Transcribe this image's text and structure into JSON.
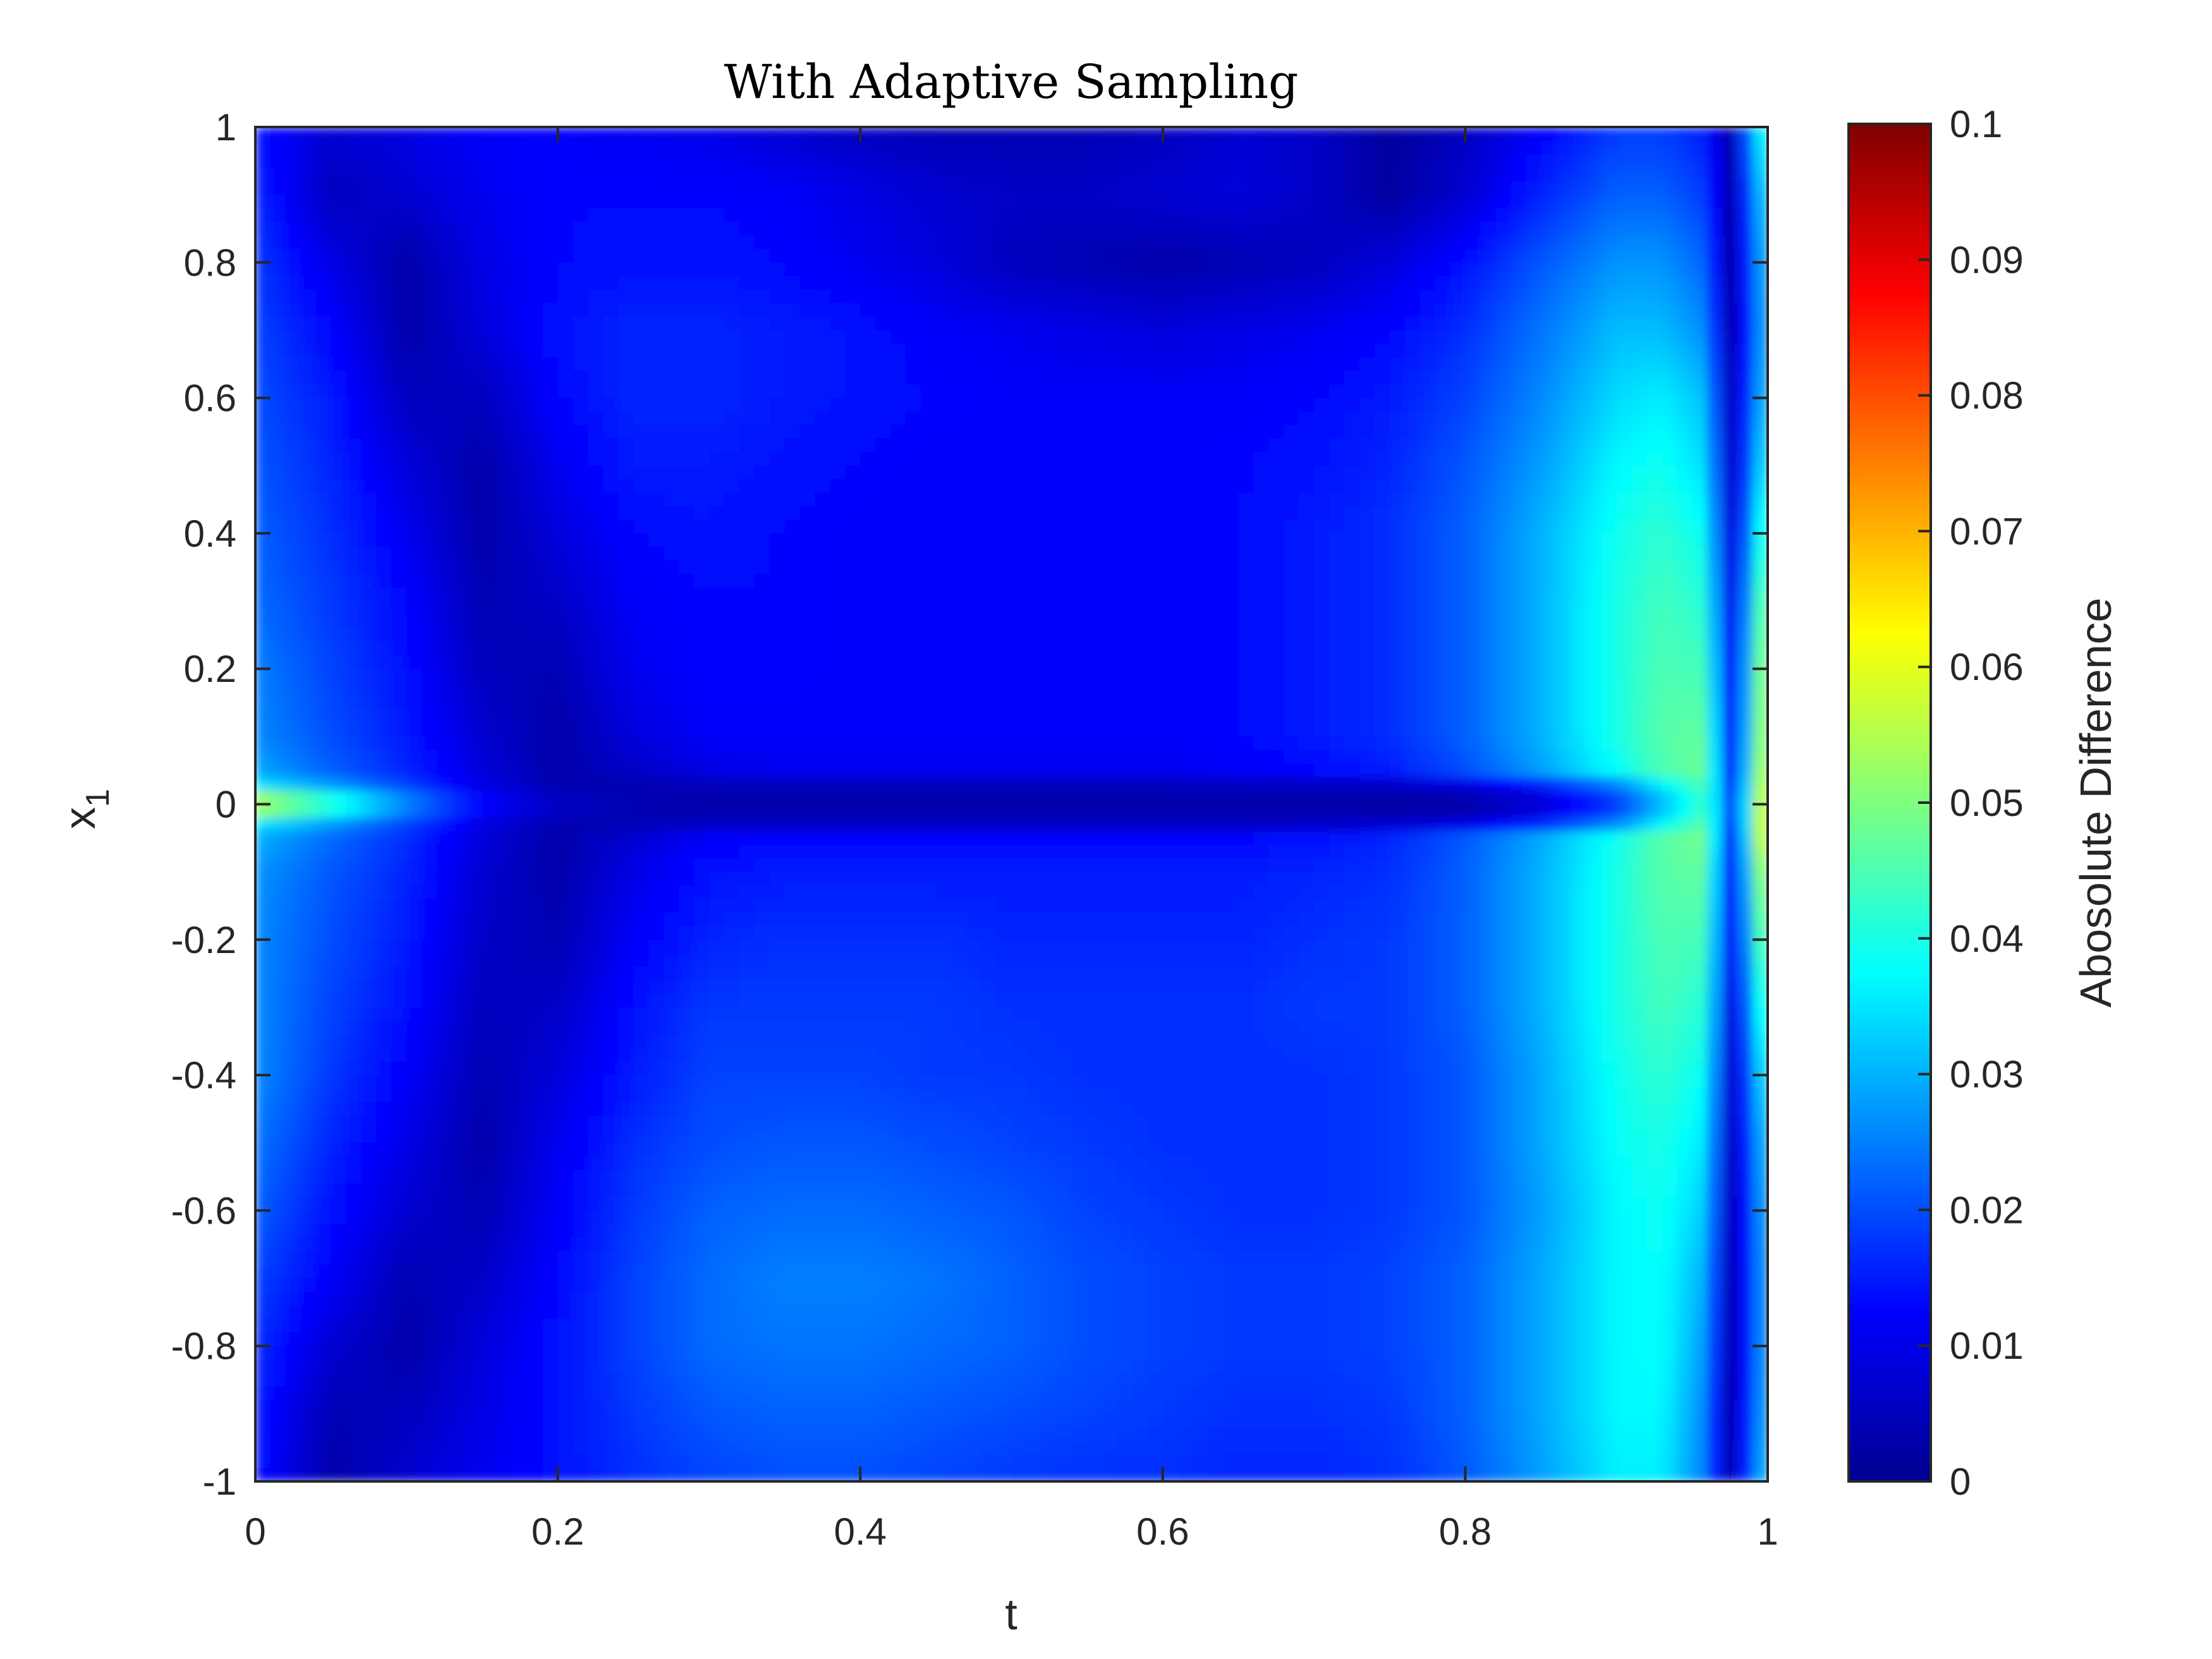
{
  "chart_data": {
    "type": "heatmap",
    "title": "With Adaptive Sampling",
    "xlabel": "t",
    "ylabel_base": "x",
    "ylabel_sub": "1",
    "colorbar_label": "Abosolute Difference",
    "xlim": [
      0,
      1
    ],
    "ylim": [
      -1,
      1
    ],
    "clim": [
      0,
      0.1
    ],
    "colormap": "jet",
    "grid": false,
    "x_ticks": [
      {
        "value": 0,
        "label": "0"
      },
      {
        "value": 0.2,
        "label": "0.2"
      },
      {
        "value": 0.4,
        "label": "0.4"
      },
      {
        "value": 0.6,
        "label": "0.6"
      },
      {
        "value": 0.8,
        "label": "0.8"
      },
      {
        "value": 1,
        "label": "1"
      }
    ],
    "y_ticks": [
      {
        "value": 1,
        "label": "1"
      },
      {
        "value": 0.8,
        "label": "0.8"
      },
      {
        "value": 0.6,
        "label": "0.6"
      },
      {
        "value": 0.4,
        "label": "0.4"
      },
      {
        "value": 0.2,
        "label": "0.2"
      },
      {
        "value": 0,
        "label": "0"
      },
      {
        "value": -0.2,
        "label": "-0.2"
      },
      {
        "value": -0.4,
        "label": "-0.4"
      },
      {
        "value": -0.6,
        "label": "-0.6"
      },
      {
        "value": -0.8,
        "label": "-0.8"
      },
      {
        "value": -1,
        "label": "-1"
      }
    ],
    "colorbar_ticks": [
      {
        "value": 0.1,
        "label": "0.1"
      },
      {
        "value": 0.09,
        "label": "0.09"
      },
      {
        "value": 0.08,
        "label": "0.08"
      },
      {
        "value": 0.07,
        "label": "0.07"
      },
      {
        "value": 0.06,
        "label": "0.06"
      },
      {
        "value": 0.05,
        "label": "0.05"
      },
      {
        "value": 0.04,
        "label": "0.04"
      },
      {
        "value": 0.03,
        "label": "0.03"
      },
      {
        "value": 0.02,
        "label": "0.02"
      },
      {
        "value": 0.01,
        "label": "0.01"
      },
      {
        "value": 0,
        "label": "0"
      }
    ],
    "t_grid": [
      0,
      0.05,
      0.1,
      0.15,
      0.2,
      0.25,
      0.3,
      0.35,
      0.4,
      0.45,
      0.5,
      0.55,
      0.6,
      0.65,
      0.7,
      0.75,
      0.8,
      0.85,
      0.9,
      0.93,
      0.96,
      0.97,
      0.98,
      0.99,
      1.0
    ],
    "x1_grid": [
      1.0,
      0.9,
      0.8,
      0.7,
      0.6,
      0.5,
      0.4,
      0.3,
      0.2,
      0.1,
      0.05,
      0.02,
      0.0,
      -0.02,
      -0.05,
      -0.1,
      -0.2,
      -0.3,
      -0.4,
      -0.5,
      -0.6,
      -0.7,
      -0.8,
      -0.9,
      -1.0
    ],
    "values": [
      [
        0.014,
        0.008,
        0.01,
        0.012,
        0.012,
        0.011,
        0.01,
        0.008,
        0.006,
        0.005,
        0.005,
        0.005,
        0.006,
        0.008,
        0.007,
        0.003,
        0.006,
        0.012,
        0.018,
        0.018,
        0.015,
        0.006,
        0.004,
        0.036,
        0.036
      ],
      [
        0.016,
        0.006,
        0.008,
        0.011,
        0.013,
        0.013,
        0.013,
        0.012,
        0.01,
        0.008,
        0.007,
        0.007,
        0.008,
        0.009,
        0.007,
        0.003,
        0.008,
        0.016,
        0.022,
        0.022,
        0.018,
        0.007,
        0.003,
        0.03,
        0.03
      ],
      [
        0.018,
        0.01,
        0.004,
        0.01,
        0.013,
        0.014,
        0.014,
        0.013,
        0.011,
        0.009,
        0.006,
        0.005,
        0.004,
        0.005,
        0.006,
        0.009,
        0.014,
        0.021,
        0.027,
        0.027,
        0.022,
        0.008,
        0.002,
        0.027,
        0.027
      ],
      [
        0.019,
        0.013,
        0.004,
        0.009,
        0.014,
        0.016,
        0.016,
        0.015,
        0.014,
        0.012,
        0.011,
        0.01,
        0.009,
        0.01,
        0.011,
        0.013,
        0.017,
        0.024,
        0.031,
        0.031,
        0.026,
        0.009,
        0.002,
        0.026,
        0.026
      ],
      [
        0.02,
        0.015,
        0.006,
        0.006,
        0.013,
        0.016,
        0.016,
        0.015,
        0.014,
        0.013,
        0.012,
        0.012,
        0.012,
        0.012,
        0.013,
        0.015,
        0.019,
        0.026,
        0.034,
        0.036,
        0.031,
        0.011,
        0.003,
        0.028,
        0.028
      ],
      [
        0.021,
        0.016,
        0.009,
        0.004,
        0.011,
        0.015,
        0.015,
        0.014,
        0.013,
        0.012,
        0.012,
        0.012,
        0.012,
        0.013,
        0.014,
        0.016,
        0.021,
        0.028,
        0.037,
        0.039,
        0.034,
        0.013,
        0.003,
        0.032,
        0.032
      ],
      [
        0.022,
        0.017,
        0.011,
        0.004,
        0.009,
        0.013,
        0.014,
        0.013,
        0.012,
        0.012,
        0.012,
        0.012,
        0.012,
        0.013,
        0.015,
        0.017,
        0.022,
        0.03,
        0.039,
        0.042,
        0.038,
        0.015,
        0.004,
        0.038,
        0.038
      ],
      [
        0.023,
        0.018,
        0.013,
        0.005,
        0.007,
        0.012,
        0.013,
        0.013,
        0.012,
        0.012,
        0.012,
        0.012,
        0.012,
        0.013,
        0.015,
        0.017,
        0.022,
        0.03,
        0.04,
        0.044,
        0.041,
        0.017,
        0.005,
        0.044,
        0.044
      ],
      [
        0.025,
        0.019,
        0.014,
        0.006,
        0.005,
        0.011,
        0.013,
        0.013,
        0.012,
        0.012,
        0.012,
        0.012,
        0.012,
        0.013,
        0.015,
        0.017,
        0.022,
        0.03,
        0.04,
        0.045,
        0.044,
        0.019,
        0.006,
        0.048,
        0.048
      ],
      [
        0.026,
        0.02,
        0.015,
        0.008,
        0.004,
        0.009,
        0.012,
        0.012,
        0.012,
        0.012,
        0.012,
        0.012,
        0.012,
        0.013,
        0.015,
        0.017,
        0.022,
        0.03,
        0.04,
        0.046,
        0.047,
        0.021,
        0.007,
        0.05,
        0.05
      ],
      [
        0.029,
        0.022,
        0.016,
        0.009,
        0.004,
        0.007,
        0.01,
        0.011,
        0.011,
        0.011,
        0.011,
        0.011,
        0.011,
        0.012,
        0.013,
        0.015,
        0.02,
        0.028,
        0.038,
        0.045,
        0.048,
        0.022,
        0.008,
        0.052,
        0.052
      ],
      [
        0.038,
        0.03,
        0.02,
        0.01,
        0.005,
        0.004,
        0.004,
        0.004,
        0.004,
        0.004,
        0.004,
        0.004,
        0.004,
        0.004,
        0.004,
        0.004,
        0.005,
        0.01,
        0.02,
        0.033,
        0.045,
        0.025,
        0.01,
        0.054,
        0.054
      ],
      [
        0.068,
        0.05,
        0.03,
        0.015,
        0.008,
        0.006,
        0.005,
        0.005,
        0.005,
        0.005,
        0.005,
        0.005,
        0.005,
        0.005,
        0.005,
        0.004,
        0.004,
        0.008,
        0.018,
        0.03,
        0.043,
        0.027,
        0.012,
        0.055,
        0.055
      ],
      [
        0.038,
        0.03,
        0.02,
        0.01,
        0.005,
        0.004,
        0.004,
        0.004,
        0.004,
        0.004,
        0.004,
        0.004,
        0.004,
        0.004,
        0.004,
        0.004,
        0.005,
        0.01,
        0.02,
        0.033,
        0.046,
        0.026,
        0.011,
        0.056,
        0.056
      ],
      [
        0.03,
        0.023,
        0.017,
        0.009,
        0.004,
        0.008,
        0.012,
        0.013,
        0.013,
        0.013,
        0.013,
        0.013,
        0.013,
        0.013,
        0.014,
        0.016,
        0.021,
        0.029,
        0.039,
        0.046,
        0.049,
        0.022,
        0.008,
        0.055,
        0.055
      ],
      [
        0.027,
        0.021,
        0.016,
        0.008,
        0.004,
        0.01,
        0.014,
        0.015,
        0.015,
        0.015,
        0.015,
        0.015,
        0.015,
        0.015,
        0.016,
        0.017,
        0.022,
        0.03,
        0.04,
        0.046,
        0.047,
        0.02,
        0.007,
        0.05,
        0.05
      ],
      [
        0.026,
        0.02,
        0.015,
        0.007,
        0.005,
        0.012,
        0.016,
        0.017,
        0.017,
        0.017,
        0.016,
        0.016,
        0.016,
        0.016,
        0.017,
        0.018,
        0.022,
        0.03,
        0.04,
        0.045,
        0.044,
        0.018,
        0.006,
        0.044,
        0.044
      ],
      [
        0.026,
        0.019,
        0.014,
        0.006,
        0.007,
        0.014,
        0.018,
        0.018,
        0.018,
        0.018,
        0.017,
        0.017,
        0.017,
        0.017,
        0.018,
        0.018,
        0.022,
        0.03,
        0.04,
        0.044,
        0.041,
        0.016,
        0.004,
        0.038,
        0.038
      ],
      [
        0.026,
        0.018,
        0.012,
        0.005,
        0.009,
        0.015,
        0.019,
        0.019,
        0.019,
        0.018,
        0.018,
        0.017,
        0.017,
        0.017,
        0.017,
        0.018,
        0.021,
        0.029,
        0.039,
        0.042,
        0.038,
        0.014,
        0.003,
        0.032,
        0.032
      ],
      [
        0.024,
        0.016,
        0.01,
        0.004,
        0.011,
        0.017,
        0.02,
        0.021,
        0.021,
        0.02,
        0.019,
        0.018,
        0.017,
        0.017,
        0.017,
        0.018,
        0.021,
        0.029,
        0.038,
        0.04,
        0.035,
        0.012,
        0.003,
        0.028,
        0.028
      ],
      [
        0.022,
        0.014,
        0.008,
        0.005,
        0.012,
        0.018,
        0.022,
        0.023,
        0.023,
        0.022,
        0.021,
        0.019,
        0.018,
        0.017,
        0.017,
        0.018,
        0.021,
        0.028,
        0.037,
        0.039,
        0.032,
        0.011,
        0.002,
        0.026,
        0.026
      ],
      [
        0.019,
        0.012,
        0.005,
        0.007,
        0.013,
        0.019,
        0.023,
        0.025,
        0.025,
        0.024,
        0.022,
        0.02,
        0.019,
        0.018,
        0.018,
        0.019,
        0.022,
        0.029,
        0.037,
        0.038,
        0.029,
        0.01,
        0.002,
        0.025,
        0.025
      ],
      [
        0.017,
        0.008,
        0.004,
        0.009,
        0.014,
        0.019,
        0.023,
        0.024,
        0.024,
        0.023,
        0.022,
        0.02,
        0.019,
        0.018,
        0.018,
        0.019,
        0.022,
        0.029,
        0.037,
        0.038,
        0.027,
        0.009,
        0.002,
        0.025,
        0.025
      ],
      [
        0.015,
        0.005,
        0.006,
        0.01,
        0.014,
        0.018,
        0.021,
        0.022,
        0.022,
        0.021,
        0.02,
        0.019,
        0.018,
        0.017,
        0.017,
        0.018,
        0.022,
        0.029,
        0.037,
        0.037,
        0.025,
        0.008,
        0.003,
        0.026,
        0.026
      ],
      [
        0.014,
        0.004,
        0.008,
        0.011,
        0.014,
        0.017,
        0.019,
        0.02,
        0.02,
        0.019,
        0.018,
        0.017,
        0.017,
        0.016,
        0.016,
        0.017,
        0.021,
        0.028,
        0.036,
        0.036,
        0.024,
        0.008,
        0.004,
        0.028,
        0.028
      ]
    ]
  }
}
